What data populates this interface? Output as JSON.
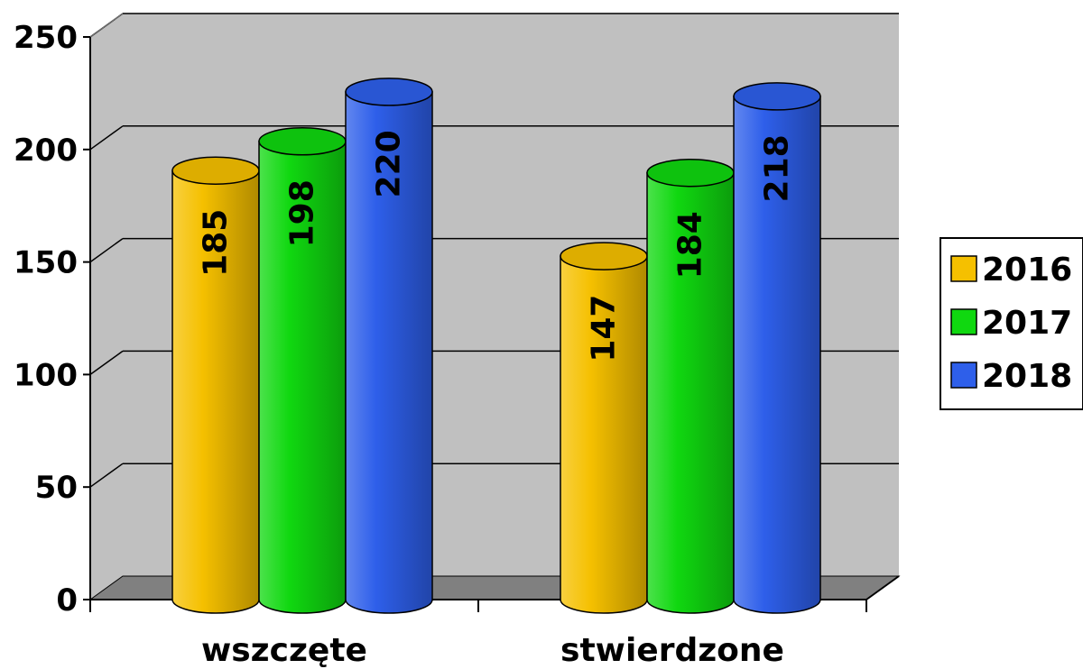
{
  "chart_data": {
    "type": "bar",
    "style": "3d-cylinder",
    "categories": [
      "wszczęte",
      "stwierdzone"
    ],
    "series": [
      {
        "name": "2016",
        "values": [
          185,
          147
        ],
        "color": "#F5C000"
      },
      {
        "name": "2017",
        "values": [
          198,
          184
        ],
        "color": "#10D810"
      },
      {
        "name": "2018",
        "values": [
          220,
          218
        ],
        "color": "#2E5FEA"
      }
    ],
    "ylim": [
      0,
      250
    ],
    "yticks": [
      0,
      50,
      100,
      150,
      200,
      250
    ],
    "grid": true,
    "legend": "right",
    "data_labels": "rotated-vertical",
    "wall_color": "#C0C0C0",
    "floor_color": "#808080"
  }
}
